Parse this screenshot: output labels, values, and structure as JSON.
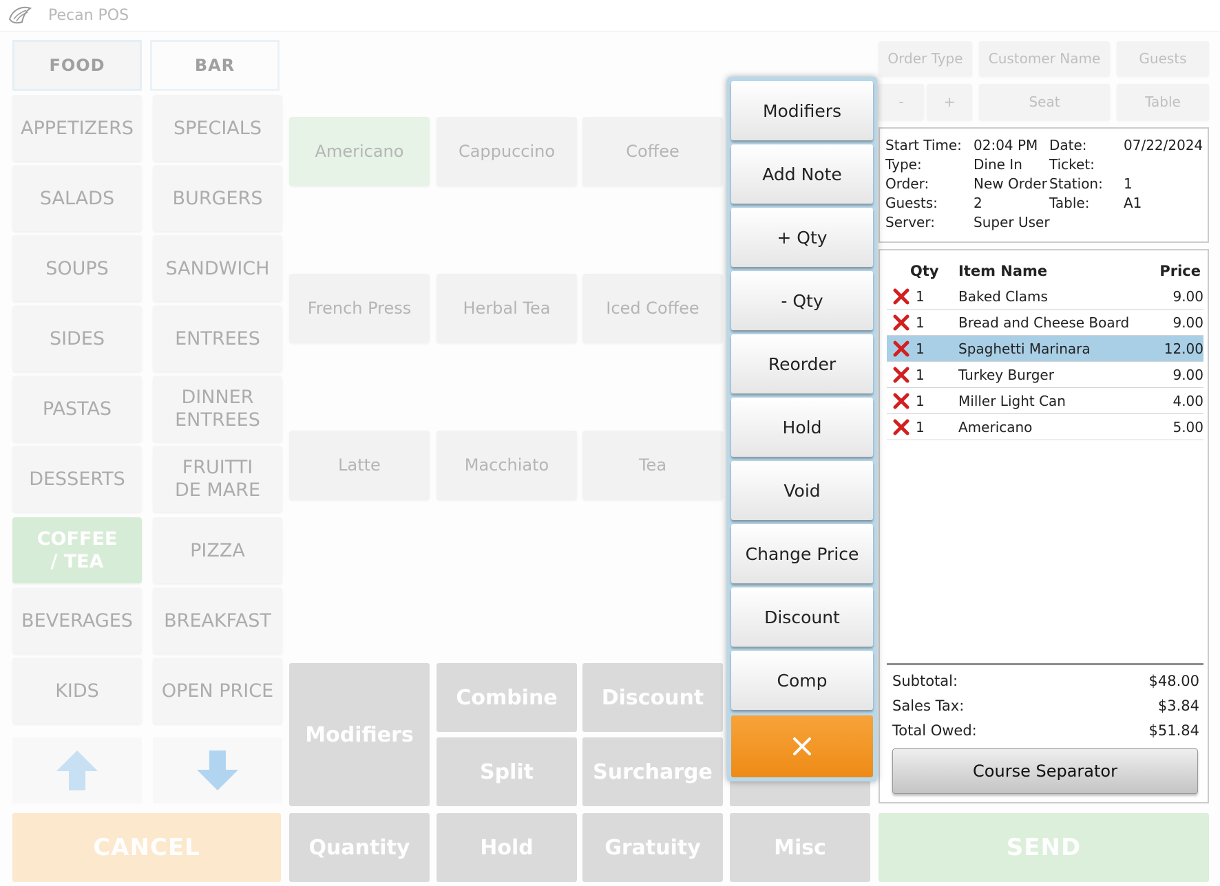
{
  "app": {
    "title": "Pecan POS"
  },
  "tabs": [
    {
      "label": "FOOD"
    },
    {
      "label": "BAR"
    }
  ],
  "categories": [
    "APPETIZERS",
    "SPECIALS",
    "SALADS",
    "BURGERS",
    "SOUPS",
    "SANDWICH",
    "SIDES",
    "ENTREES",
    "PASTAS",
    "DINNER ENTREES",
    "DESSERTS",
    "FRUITTI DE MARE",
    "COFFEE / TEA",
    "PIZZA",
    "BEVERAGES",
    "BREAKFAST",
    "KIDS",
    "OPEN PRICE"
  ],
  "active_category": "COFFEE / TEA",
  "items": [
    "Americano",
    "Cappuccino",
    "Coffee",
    "French Press",
    "Herbal Tea",
    "Iced Coffee",
    "Latte",
    "Macchiato",
    "Tea"
  ],
  "actions": {
    "modifiers": "Modifiers",
    "combine": "Combine",
    "discount": "Discount",
    "split": "Split",
    "surcharge": "Surcharge",
    "quantity": "Quantity",
    "hold": "Hold",
    "gratuity": "Gratuity",
    "misc": "Misc",
    "cancel": "CANCEL",
    "send": "SEND"
  },
  "header_buttons": {
    "order_type": "Order Type",
    "customer_name": "Customer Name",
    "guests": "Guests",
    "minus": "-",
    "plus": "+",
    "seat": "Seat",
    "table": "Table"
  },
  "order_info": {
    "start_time_label": "Start Time:",
    "start_time": "02:04 PM",
    "date_label": "Date:",
    "date": "07/22/2024",
    "type_label": "Type:",
    "type": "Dine In",
    "ticket_label": "Ticket:",
    "ticket": "",
    "order_label": "Order:",
    "order": "New Order",
    "station_label": "Station:",
    "station": "1",
    "guests_label": "Guests:",
    "guests": "2",
    "table_label": "Table:",
    "table": "A1",
    "server_label": "Server:",
    "server": "Super User"
  },
  "order_table": {
    "headers": {
      "qty": "Qty",
      "name": "Item Name",
      "price": "Price"
    },
    "rows": [
      {
        "qty": "1",
        "name": "Baked Clams",
        "price": "9.00"
      },
      {
        "qty": "1",
        "name": "Bread and Cheese Board",
        "price": "9.00"
      },
      {
        "qty": "1",
        "name": "Spaghetti Marinara",
        "price": "12.00"
      },
      {
        "qty": "1",
        "name": "Turkey Burger",
        "price": "9.00"
      },
      {
        "qty": "1",
        "name": "Miller Light Can",
        "price": "4.00"
      },
      {
        "qty": "1",
        "name": "Americano",
        "price": "5.00"
      }
    ],
    "selected_row": 2
  },
  "totals": {
    "subtotal_label": "Subtotal:",
    "subtotal": "$48.00",
    "tax_label": "Sales Tax:",
    "tax": "$3.84",
    "total_label": "Total Owed:",
    "total": "$51.84",
    "course_separator": "Course Separator"
  },
  "item_menu": {
    "buttons": [
      "Modifiers",
      "Add Note",
      "+ Qty",
      "- Qty",
      "Reorder",
      "Hold",
      "Void",
      "Change Price",
      "Discount",
      "Comp"
    ],
    "close_icon": "close-icon"
  },
  "colors": {
    "accent_orange": "#F29A28",
    "active_green": "#B9DFB9",
    "selected_row": "#A9CFE6",
    "delete_red": "#D21F1F"
  }
}
